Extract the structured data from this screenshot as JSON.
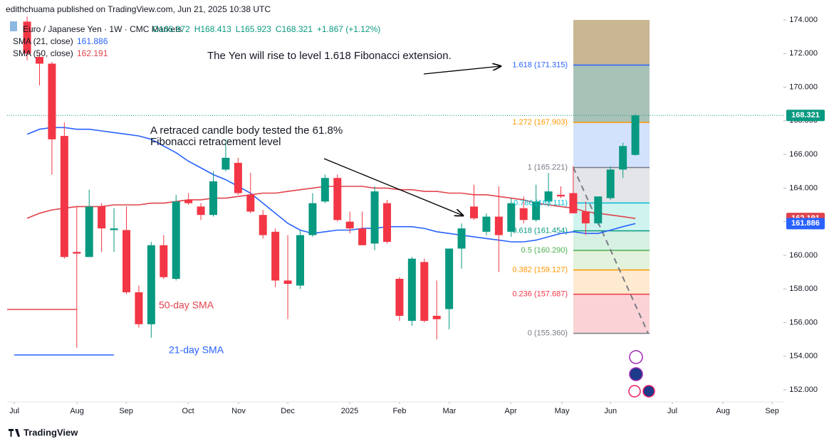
{
  "header": {
    "published": "edithchuama published on TradingView.com, Jun 21, 2025 10:38 UTC",
    "symbol": "Euro / Japanese Yen · 1W · CMC Markets",
    "ohlc": [
      "O165.972",
      "H168.413",
      "L165.923",
      "C168.321"
    ],
    "change": "+1.867 (+1.12%)"
  },
  "footer": {
    "brand": "TradingView"
  },
  "chart_data": {
    "type": "candlestick",
    "x": [
      0,
      1,
      2,
      3,
      4,
      5,
      6,
      7,
      8,
      9,
      10,
      11,
      12,
      13,
      14,
      15,
      16,
      17,
      18,
      19,
      20,
      21,
      22,
      23,
      24,
      25,
      26,
      27,
      28,
      29,
      30,
      31,
      32,
      33,
      34,
      35,
      36,
      37,
      38,
      39,
      40,
      41,
      42,
      43,
      44,
      45,
      46,
      47,
      48,
      49
    ],
    "open": [
      173.9,
      171.8,
      171.4,
      167.1,
      160.2,
      159.9,
      162.9,
      161.5,
      161.5,
      157.8,
      155.9,
      160.6,
      158.6,
      163.3,
      162.9,
      162.4,
      165.1,
      165.5,
      163.6,
      162.4,
      161.4,
      158.5,
      158.2,
      161.2,
      163.2,
      164.6,
      162.0,
      161.6,
      160.7,
      163.1,
      158.6,
      156.1,
      159.6,
      156.4,
      156.8,
      160.4,
      162.9,
      161.4,
      162.3,
      161.4,
      162.8,
      162.1,
      163.2,
      163.6,
      163.7,
      162.6,
      161.9,
      163.4,
      165.1,
      165.972
    ],
    "high": [
      174.2,
      172.0,
      171.5,
      167.9,
      162.9,
      163.9,
      163.1,
      162.8,
      162.9,
      158.2,
      160.8,
      161.2,
      163.6,
      163.7,
      163.1,
      165.0,
      166.9,
      165.8,
      164.9,
      162.7,
      161.6,
      161.2,
      161.5,
      163.7,
      164.8,
      164.8,
      162.6,
      162.6,
      164.1,
      163.3,
      158.7,
      159.9,
      159.8,
      158.5,
      160.4,
      161.9,
      164.2,
      162.5,
      164.1,
      163.4,
      163.5,
      164.2,
      164.9,
      164.1,
      165.3,
      163.2,
      163.5,
      165.3,
      166.7,
      168.413
    ],
    "low": [
      171.6,
      170.1,
      164.8,
      159.8,
      154.5,
      159.9,
      160.2,
      160.2,
      157.7,
      155.7,
      155.1,
      158.6,
      158.5,
      163.0,
      162.1,
      162.3,
      165.0,
      163.6,
      162.5,
      161.0,
      158.1,
      156.2,
      158.0,
      161.1,
      163.1,
      162.0,
      161.3,
      160.6,
      160.3,
      160.7,
      156.1,
      155.8,
      156.0,
      155.0,
      155.6,
      159.2,
      162.1,
      161.2,
      159.0,
      161.1,
      161.9,
      162.0,
      162.9,
      163.4,
      162.5,
      161.2,
      161.8,
      163.3,
      164.6,
      165.923
    ],
    "close": [
      172.0,
      171.4,
      166.9,
      159.9,
      160.1,
      162.9,
      161.6,
      161.6,
      157.8,
      155.9,
      160.6,
      158.7,
      163.2,
      163.1,
      162.4,
      164.4,
      165.8,
      163.7,
      162.6,
      161.2,
      158.5,
      158.3,
      161.2,
      163.1,
      164.6,
      162.1,
      161.6,
      160.6,
      163.8,
      160.8,
      156.4,
      159.8,
      156.1,
      156.2,
      160.4,
      161.6,
      162.2,
      162.3,
      161.2,
      163.1,
      162.1,
      163.2,
      163.8,
      163.5,
      162.5,
      161.9,
      163.5,
      165.1,
      166.5,
      168.321
    ],
    "up_color": "#089981",
    "down_color": "#f23645",
    "series": [
      {
        "name": "SMA (21, close)",
        "color": "#2962ff",
        "values": [
          167.2,
          167.5,
          167.6,
          167.6,
          167.5,
          167.5,
          167.4,
          167.3,
          167.2,
          167.1,
          166.9,
          166.5,
          166.1,
          165.6,
          165.2,
          164.8,
          164.5,
          164.1,
          163.7,
          163.1,
          162.5,
          161.9,
          161.5,
          161.3,
          161.4,
          161.5,
          161.5,
          161.6,
          161.6,
          161.7,
          161.7,
          161.7,
          161.6,
          161.4,
          161.3,
          161.2,
          161.1,
          161.0,
          160.9,
          160.8,
          160.8,
          160.9,
          161.1,
          161.3,
          161.4,
          161.3,
          161.3,
          161.5,
          161.7,
          161.886
        ]
      },
      {
        "name": "SMA (50, close)",
        "color": "#e0434b",
        "values": [
          162.2,
          162.5,
          162.7,
          162.8,
          162.9,
          162.9,
          162.9,
          163.0,
          163.0,
          163.0,
          163.1,
          163.1,
          163.2,
          163.3,
          163.3,
          163.4,
          163.4,
          163.5,
          163.6,
          163.7,
          163.7,
          163.8,
          163.9,
          164.0,
          164.1,
          164.1,
          164.1,
          164.1,
          164.0,
          164.0,
          163.9,
          163.9,
          163.8,
          163.8,
          163.7,
          163.7,
          163.6,
          163.6,
          163.5,
          163.4,
          163.3,
          163.1,
          163.0,
          162.9,
          162.8,
          162.6,
          162.5,
          162.4,
          162.3,
          162.191
        ]
      }
    ],
    "fib_levels": [
      {
        "label": "0 (155.360)",
        "value": 155.36,
        "color": "#787b86",
        "fill": "#fbd3d6"
      },
      {
        "label": "0.236 (157.687)",
        "value": 157.687,
        "color": "#f23645",
        "fill": "#feead0"
      },
      {
        "label": "0.382 (159.127)",
        "value": 159.127,
        "color": "#ff9800",
        "fill": "#e3f2dc"
      },
      {
        "label": "0.5 (160.290)",
        "value": 160.29,
        "color": "#4caf50",
        "fill": "#d6f0e2"
      },
      {
        "label": "0.618 (161.454)",
        "value": 161.454,
        "color": "#089981",
        "fill": "#cff4f0"
      },
      {
        "label": "0.786 (163.111)",
        "value": 163.111,
        "color": "#00bcd4",
        "fill": "#e4e5e8"
      },
      {
        "label": "1 (165.221)",
        "value": 165.221,
        "color": "#787b86",
        "fill": "#d2e2fc"
      },
      {
        "label": "1.272 (167.903)",
        "value": 167.903,
        "color": "#ff9800",
        "fill": "#a9c2b8"
      },
      {
        "label": "1.618 (171.315)",
        "value": 171.315,
        "color": "#2962ff",
        "fill": "#c9b793"
      }
    ],
    "annotations": [
      "The Yen  will rise to level 1.618 Fibonacci extension.",
      "A retraced candle body tested the 61.8%",
      "Fibonacci retracement level",
      "50-day SMA",
      "21-day SMA"
    ],
    "xlim": [
      -1.61,
      60.93
    ],
    "xticks": [
      {
        "value": -1.03,
        "label": "Jul"
      },
      {
        "value": 4.02,
        "label": "Aug"
      },
      {
        "value": 7.98,
        "label": "Sep"
      },
      {
        "value": 12.97,
        "label": "Oct"
      },
      {
        "value": 17.04,
        "label": "Nov"
      },
      {
        "value": 21.0,
        "label": "Dec"
      },
      {
        "value": 25.99,
        "label": "2025"
      },
      {
        "value": 30.0,
        "label": "Feb"
      },
      {
        "value": 34.02,
        "label": "Mar"
      },
      {
        "value": 38.96,
        "label": "Apr"
      },
      {
        "value": 43.09,
        "label": "May"
      },
      {
        "value": 47.0,
        "label": "Jun"
      },
      {
        "value": 51.98,
        "label": "Jul"
      },
      {
        "value": 56.06,
        "label": "Aug"
      },
      {
        "value": 60.02,
        "label": "Sep"
      }
    ],
    "ylim": [
      151.28,
      174.34
    ],
    "yticks": [
      {
        "value": 152,
        "label": "152.000"
      },
      {
        "value": 154,
        "label": "154.000"
      },
      {
        "value": 156,
        "label": "156.000"
      },
      {
        "value": 158,
        "label": "158.000"
      },
      {
        "value": 160,
        "label": "160.000"
      },
      {
        "value": 162,
        "label": "162.000"
      },
      {
        "value": 164,
        "label": "164.000"
      },
      {
        "value": 166,
        "label": "166.000"
      },
      {
        "value": 168,
        "label": "168.000"
      },
      {
        "value": 170,
        "label": "170.000"
      },
      {
        "value": 172,
        "label": "172.000"
      },
      {
        "value": 174,
        "label": "174.000"
      }
    ],
    "grid": false
  }
}
